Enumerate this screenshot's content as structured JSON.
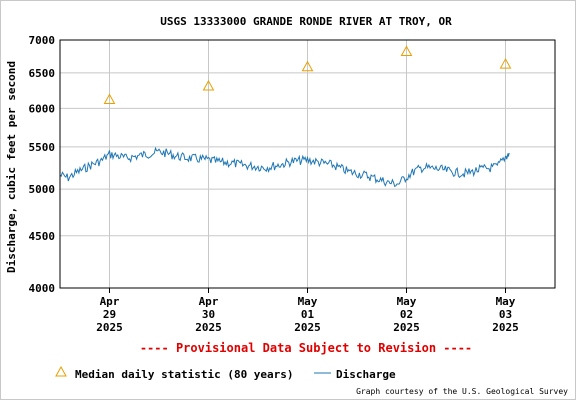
{
  "chart_data": {
    "type": "line",
    "title": "USGS 13333000 GRANDE RONDE RIVER AT TROY, OR",
    "ylabel": "Discharge, cubic feet per second",
    "xlabel": "",
    "y_scale": "log",
    "ylim": [
      4000,
      7000
    ],
    "y_ticks": [
      4000,
      4500,
      5000,
      5500,
      6000,
      6500,
      7000
    ],
    "grid": true,
    "x_ticks": [
      {
        "date": "2025-04-29",
        "lines": [
          "Apr",
          "29",
          "2025"
        ]
      },
      {
        "date": "2025-04-30",
        "lines": [
          "Apr",
          "30",
          "2025"
        ]
      },
      {
        "date": "2025-05-01",
        "lines": [
          "May",
          "01",
          "2025"
        ]
      },
      {
        "date": "2025-05-02",
        "lines": [
          "May",
          "02",
          "2025"
        ]
      },
      {
        "date": "2025-05-03",
        "lines": [
          "May",
          "03",
          "2025"
        ]
      }
    ],
    "xlim": [
      "2025-04-28T12:00",
      "2025-05-03T12:00"
    ],
    "series": [
      {
        "name": "Discharge",
        "color": "#1f77b4",
        "x": [
          "2025-04-28T12:00",
          "2025-04-28T14:00",
          "2025-04-28T16:00",
          "2025-04-28T18:00",
          "2025-04-28T20:00",
          "2025-04-28T22:00",
          "2025-04-29T00:00",
          "2025-04-29T02:00",
          "2025-04-29T04:00",
          "2025-04-29T06:00",
          "2025-04-29T08:00",
          "2025-04-29T10:00",
          "2025-04-29T12:00",
          "2025-04-29T14:00",
          "2025-04-29T16:00",
          "2025-04-29T18:00",
          "2025-04-29T20:00",
          "2025-04-29T22:00",
          "2025-04-30T00:00",
          "2025-04-30T02:00",
          "2025-04-30T04:00",
          "2025-04-30T06:00",
          "2025-04-30T08:00",
          "2025-04-30T10:00",
          "2025-04-30T12:00",
          "2025-04-30T14:00",
          "2025-04-30T16:00",
          "2025-04-30T18:00",
          "2025-04-30T20:00",
          "2025-04-30T22:00",
          "2025-05-01T00:00",
          "2025-05-01T02:00",
          "2025-05-01T04:00",
          "2025-05-01T06:00",
          "2025-05-01T08:00",
          "2025-05-01T10:00",
          "2025-05-01T12:00",
          "2025-05-01T14:00",
          "2025-05-01T16:00",
          "2025-05-01T18:00",
          "2025-05-01T20:00",
          "2025-05-01T22:00",
          "2025-05-02T00:00",
          "2025-05-02T02:00",
          "2025-05-02T04:00",
          "2025-05-02T06:00",
          "2025-05-02T08:00",
          "2025-05-02T10:00",
          "2025-05-02T12:00",
          "2025-05-02T14:00",
          "2025-05-02T16:00",
          "2025-05-02T18:00",
          "2025-05-02T20:00",
          "2025-05-02T22:00",
          "2025-05-03T00:00",
          "2025-05-03T01:00"
        ],
        "values": [
          5160,
          5130,
          5190,
          5240,
          5290,
          5330,
          5410,
          5390,
          5360,
          5380,
          5400,
          5420,
          5440,
          5420,
          5390,
          5370,
          5360,
          5350,
          5340,
          5320,
          5310,
          5300,
          5280,
          5270,
          5260,
          5250,
          5270,
          5290,
          5320,
          5330,
          5340,
          5320,
          5300,
          5280,
          5240,
          5200,
          5180,
          5160,
          5130,
          5100,
          5070,
          5060,
          5140,
          5210,
          5250,
          5240,
          5230,
          5210,
          5190,
          5180,
          5200,
          5230,
          5240,
          5260,
          5380,
          5420
        ]
      },
      {
        "name": "Median daily statistic (80 years)",
        "color": "#e8a000",
        "marker": "triangle",
        "x": [
          "2025-04-29T00:00",
          "2025-04-30T00:00",
          "2025-05-01T00:00",
          "2025-05-02T00:00",
          "2025-05-03T00:00"
        ],
        "values": [
          6120,
          6310,
          6590,
          6820,
          6630
        ]
      }
    ]
  },
  "provisional_text": "---- Provisional Data Subject to Revision ----",
  "legend": {
    "median_label": "Median daily statistic (80 years)",
    "discharge_label": "Discharge"
  },
  "credit": "Graph courtesy of the U.S. Geological Survey",
  "colors": {
    "discharge": "#1f77b4",
    "median": "#e8a000",
    "provisional": "#e00000",
    "grid": "#c8c8c8"
  }
}
